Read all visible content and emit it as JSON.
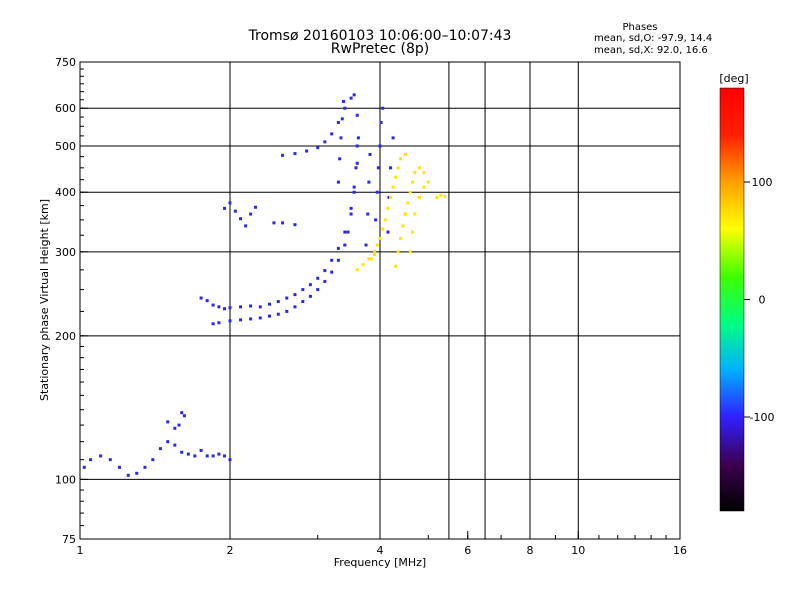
{
  "chart_data": {
    "type": "scatter",
    "title": "Tromsø 20160103 10:06:00–10:07:43",
    "subtitle": "RwPretec (8p)",
    "xlabel": "Frequency [MHz]",
    "ylabel": "Stationary phase Virtual Height [km]",
    "x_scale": "log",
    "y_scale": "log",
    "xlim": [
      1,
      16
    ],
    "ylim": [
      75,
      750
    ],
    "x_ticks": [
      1,
      2,
      4,
      6,
      8,
      10,
      16
    ],
    "x_tick_labels": [
      "1",
      "2",
      "4",
      "6",
      "8",
      "10",
      "16"
    ],
    "y_ticks": [
      75,
      100,
      200,
      300,
      400,
      500,
      600,
      750
    ],
    "y_tick_labels": [
      "75",
      "100",
      "200",
      "300",
      "400",
      "500",
      "600",
      "750"
    ],
    "x_gridlines": [
      2,
      4,
      5.5,
      6.5,
      8,
      10
    ],
    "y_gridlines": [
      100,
      200,
      300,
      400,
      500,
      600
    ],
    "grid": true,
    "phase_info": {
      "header": "Phases",
      "line_o": "mean, sd,O: -97.9, 14.4",
      "line_x": "mean, sd,X:  92.0, 16.6"
    },
    "colorbar": {
      "label": "[deg]",
      "range": [
        -180,
        180
      ],
      "tick_values": [
        100,
        0,
        -100
      ],
      "tick_labels": [
        "100",
        "0",
        "-100"
      ],
      "colors": [
        "#000000",
        "#3c0050",
        "#3020ff",
        "#00b0ff",
        "#00ff80",
        "#40ff00",
        "#ffff00",
        "#ffa000",
        "#ff2000",
        "#ff0000"
      ]
    },
    "series": [
      {
        "mode": "O",
        "color": "#2828e8",
        "traces": [
          [
            [
              1.02,
              106
            ],
            [
              1.05,
              110
            ],
            [
              1.1,
              112
            ],
            [
              1.15,
              110
            ],
            [
              1.2,
              106
            ],
            [
              1.25,
              102
            ],
            [
              1.3,
              103
            ],
            [
              1.35,
              106
            ],
            [
              1.4,
              110
            ],
            [
              1.45,
              116
            ],
            [
              1.5,
              120
            ],
            [
              1.55,
              118
            ],
            [
              1.6,
              114
            ],
            [
              1.65,
              113
            ],
            [
              1.7,
              112
            ],
            [
              1.75,
              115
            ],
            [
              1.8,
              112
            ],
            [
              1.85,
              112
            ],
            [
              1.9,
              113
            ],
            [
              1.95,
              112
            ],
            [
              2.0,
              110
            ]
          ],
          [
            [
              1.75,
              240
            ],
            [
              1.8,
              237
            ],
            [
              1.85,
              232
            ],
            [
              1.9,
              230
            ],
            [
              1.95,
              228
            ],
            [
              2.0,
              229
            ],
            [
              2.1,
              230
            ],
            [
              2.2,
              231
            ],
            [
              2.3,
              230
            ],
            [
              2.4,
              233
            ],
            [
              2.5,
              236
            ],
            [
              2.6,
              240
            ],
            [
              2.7,
              244
            ],
            [
              2.8,
              250
            ],
            [
              2.9,
              256
            ],
            [
              3.0,
              264
            ],
            [
              3.1,
              274
            ],
            [
              3.2,
              288
            ],
            [
              3.3,
              305
            ],
            [
              3.4,
              330
            ],
            [
              3.5,
              370
            ],
            [
              3.55,
              410
            ],
            [
              3.6,
              460
            ],
            [
              3.62,
              520
            ],
            [
              3.6,
              580
            ]
          ],
          [
            [
              1.85,
              212
            ],
            [
              1.9,
              213
            ],
            [
              2.0,
              215
            ],
            [
              2.1,
              216
            ],
            [
              2.2,
              217
            ],
            [
              2.3,
              218
            ],
            [
              2.4,
              220
            ],
            [
              2.5,
              222
            ],
            [
              2.6,
              225
            ],
            [
              2.7,
              230
            ],
            [
              2.8,
              236
            ],
            [
              2.9,
              242
            ],
            [
              3.0,
              250
            ],
            [
              3.1,
              260
            ],
            [
              3.2,
              272
            ],
            [
              3.3,
              288
            ],
            [
              3.4,
              310
            ],
            [
              3.45,
              330
            ],
            [
              3.5,
              360
            ],
            [
              3.55,
              400
            ],
            [
              3.58,
              450
            ],
            [
              3.6,
              500
            ]
          ],
          [
            [
              2.55,
              478
            ],
            [
              2.7,
              482
            ],
            [
              2.85,
              488
            ],
            [
              3.0,
              496
            ],
            [
              3.1,
              510
            ],
            [
              3.2,
              530
            ],
            [
              3.3,
              560
            ],
            [
              3.4,
              600
            ],
            [
              3.5,
              630
            ],
            [
              3.55,
              640
            ]
          ],
          [
            [
              3.3,
              420
            ],
            [
              3.32,
              470
            ],
            [
              3.34,
              520
            ],
            [
              3.36,
              570
            ],
            [
              3.38,
              620
            ]
          ],
          [
            [
              3.9,
              300
            ],
            [
              3.92,
              350
            ],
            [
              3.95,
              400
            ],
            [
              3.97,
              450
            ],
            [
              4.0,
              500
            ],
            [
              4.02,
              560
            ],
            [
              4.05,
              600
            ]
          ],
          [
            [
              3.75,
              310
            ],
            [
              3.78,
              360
            ],
            [
              3.8,
              420
            ],
            [
              3.82,
              480
            ]
          ],
          [
            [
              4.15,
              330
            ],
            [
              4.17,
              390
            ],
            [
              4.2,
              450
            ],
            [
              4.25,
              520
            ]
          ],
          [
            [
              1.95,
              370
            ],
            [
              2.0,
              380
            ],
            [
              2.05,
              365
            ],
            [
              2.1,
              352
            ],
            [
              2.15,
              340
            ],
            [
              2.2,
              360
            ],
            [
              2.25,
              372
            ]
          ],
          [
            [
              2.45,
              345
            ],
            [
              2.55,
              345
            ],
            [
              2.7,
              342
            ]
          ],
          [
            [
              1.5,
              132
            ],
            [
              1.55,
              128
            ],
            [
              1.6,
              138
            ],
            [
              1.58,
              130
            ],
            [
              1.62,
              136
            ]
          ]
        ]
      },
      {
        "mode": "X",
        "color": "#ffe400",
        "traces": [
          [
            [
              3.85,
              290
            ],
            [
              3.9,
              300
            ],
            [
              3.95,
              310
            ],
            [
              4.0,
              320
            ],
            [
              4.05,
              335
            ],
            [
              4.1,
              350
            ],
            [
              4.15,
              370
            ],
            [
              4.2,
              390
            ],
            [
              4.25,
              410
            ],
            [
              4.3,
              430
            ],
            [
              4.35,
              450
            ],
            [
              4.4,
              470
            ],
            [
              4.5,
              480
            ]
          ],
          [
            [
              4.3,
              280
            ],
            [
              4.35,
              300
            ],
            [
              4.4,
              320
            ],
            [
              4.45,
              340
            ],
            [
              4.5,
              360
            ],
            [
              4.55,
              380
            ],
            [
              4.6,
              400
            ],
            [
              4.65,
              420
            ],
            [
              4.7,
              440
            ],
            [
              4.8,
              450
            ],
            [
              4.9,
              440
            ]
          ],
          [
            [
              4.6,
              300
            ],
            [
              4.65,
              330
            ],
            [
              4.7,
              360
            ],
            [
              4.8,
              390
            ],
            [
              4.9,
              410
            ],
            [
              5.0,
              420
            ]
          ],
          [
            [
              3.6,
              275
            ],
            [
              3.7,
              282
            ],
            [
              3.8,
              290
            ],
            [
              3.9,
              296
            ]
          ],
          [
            [
              5.2,
              390
            ],
            [
              5.3,
              394
            ],
            [
              5.4,
              392
            ]
          ]
        ]
      }
    ]
  }
}
